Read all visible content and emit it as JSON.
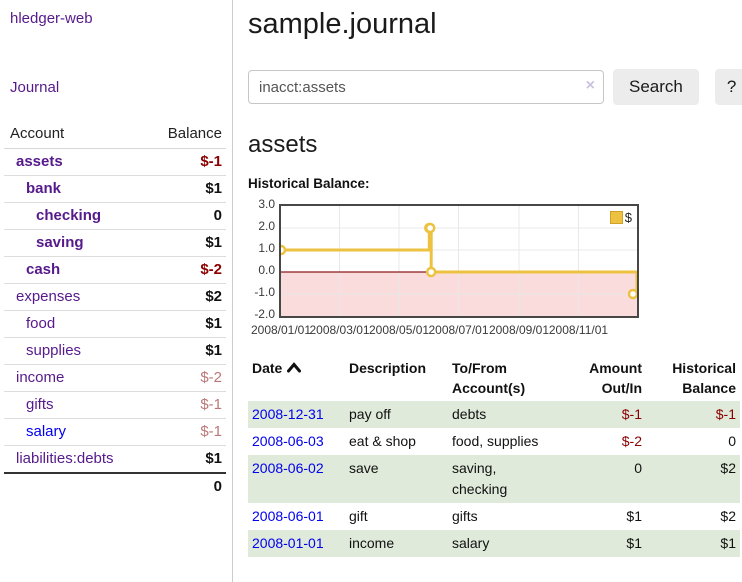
{
  "sidebar": {
    "brand": "hledger-web",
    "journal_link": "Journal",
    "accounts_table": {
      "headers": {
        "account": "Account",
        "balance": "Balance"
      },
      "rows": [
        {
          "name": "assets",
          "indent": 1,
          "bold": true,
          "link_color": "purple",
          "balance": "$-1",
          "balance_style": "negative"
        },
        {
          "name": "bank",
          "indent": 2,
          "bold": true,
          "link_color": "purple",
          "balance": "$1",
          "balance_style": "normal"
        },
        {
          "name": "checking",
          "indent": 3,
          "bold": true,
          "link_color": "purple",
          "balance": "0",
          "balance_style": "normal"
        },
        {
          "name": "saving",
          "indent": 3,
          "bold": true,
          "link_color": "purple",
          "balance": "$1",
          "balance_style": "normal"
        },
        {
          "name": "cash",
          "indent": 2,
          "bold": true,
          "link_color": "purple",
          "balance": "$-2",
          "balance_style": "negative"
        },
        {
          "name": "expenses",
          "indent": 1,
          "bold": false,
          "link_color": "purple",
          "balance": "$2",
          "balance_style": "normal"
        },
        {
          "name": "food",
          "indent": 2,
          "bold": false,
          "link_color": "purple",
          "balance": "$1",
          "balance_style": "normal"
        },
        {
          "name": "supplies",
          "indent": 2,
          "bold": false,
          "link_color": "purple",
          "balance": "$1",
          "balance_style": "normal"
        },
        {
          "name": "income",
          "indent": 1,
          "bold": false,
          "link_color": "purple",
          "balance": "$-2",
          "balance_style": "rose"
        },
        {
          "name": "gifts",
          "indent": 2,
          "bold": false,
          "link_color": "purple",
          "balance": "$-1",
          "balance_style": "rose"
        },
        {
          "name": "salary",
          "indent": 2,
          "bold": false,
          "link_color": "blue",
          "balance": "$-1",
          "balance_style": "rose"
        },
        {
          "name": "liabilities:debts",
          "indent": 1,
          "bold": false,
          "link_color": "purple",
          "balance": "$1",
          "balance_style": "normal"
        }
      ],
      "total": "0"
    }
  },
  "header": {
    "title": "sample.journal"
  },
  "search": {
    "value": "inacct:assets",
    "clear_icon": "×",
    "button_label": "Search",
    "help_label": "?"
  },
  "account_page": {
    "heading": "assets",
    "chart_title": "Historical Balance:"
  },
  "chart_data": {
    "type": "line",
    "title": "Historical Balance of assets",
    "step": true,
    "series": [
      {
        "name": "$",
        "points": [
          [
            "2008-01-01",
            1
          ],
          [
            "2008-06-01",
            2
          ],
          [
            "2008-06-02",
            2
          ],
          [
            "2008-06-03",
            0
          ],
          [
            "2008-12-31",
            -1
          ]
        ]
      }
    ],
    "xlim": [
      "2008-01-01",
      "2008-12-31"
    ],
    "ylim": [
      -2,
      3
    ],
    "x_ticks": [
      "2008/01/01",
      "2008/03/01",
      "2008/05/01",
      "2008/07/01",
      "2008/09/01",
      "2008/11/01"
    ],
    "y_ticks": [
      "3.0",
      "2.0",
      "1.0",
      "0.0",
      "-1.0",
      "-2.0"
    ],
    "legend": {
      "label": "$",
      "position": "top-right"
    },
    "colors": {
      "line": "#edc240",
      "marker_fill": "#ffffff",
      "negative_region": "#fadcdc",
      "zero_line": "#8b1a1a",
      "grid": "#e8e8e8",
      "border": "#474747"
    }
  },
  "register": {
    "headers": [
      {
        "line1": "Date",
        "line2": "",
        "align": "left",
        "sorted": true
      },
      {
        "line1": "Description",
        "line2": "",
        "align": "left",
        "sorted": false
      },
      {
        "line1": "To/From",
        "line2": "Account(s)",
        "align": "left",
        "sorted": false
      },
      {
        "line1": "Amount",
        "line2": "Out/In",
        "align": "right",
        "sorted": false
      },
      {
        "line1": "Historical",
        "line2": "Balance",
        "align": "right",
        "sorted": false
      }
    ],
    "rows": [
      {
        "date": "2008-12-31",
        "description": "pay off",
        "accounts": "debts",
        "amount": "$-1",
        "balance": "$-1"
      },
      {
        "date": "2008-06-03",
        "description": "eat & shop",
        "accounts": "food, supplies",
        "amount": "$-2",
        "balance": "0"
      },
      {
        "date": "2008-06-02",
        "description": "save",
        "accounts": "saving,\nchecking",
        "amount": "0",
        "balance": "$2"
      },
      {
        "date": "2008-06-01",
        "description": "gift",
        "accounts": "gifts",
        "amount": "$1",
        "balance": "$2"
      },
      {
        "date": "2008-01-01",
        "description": "income",
        "accounts": "salary",
        "amount": "$1",
        "balance": "$1"
      }
    ]
  }
}
